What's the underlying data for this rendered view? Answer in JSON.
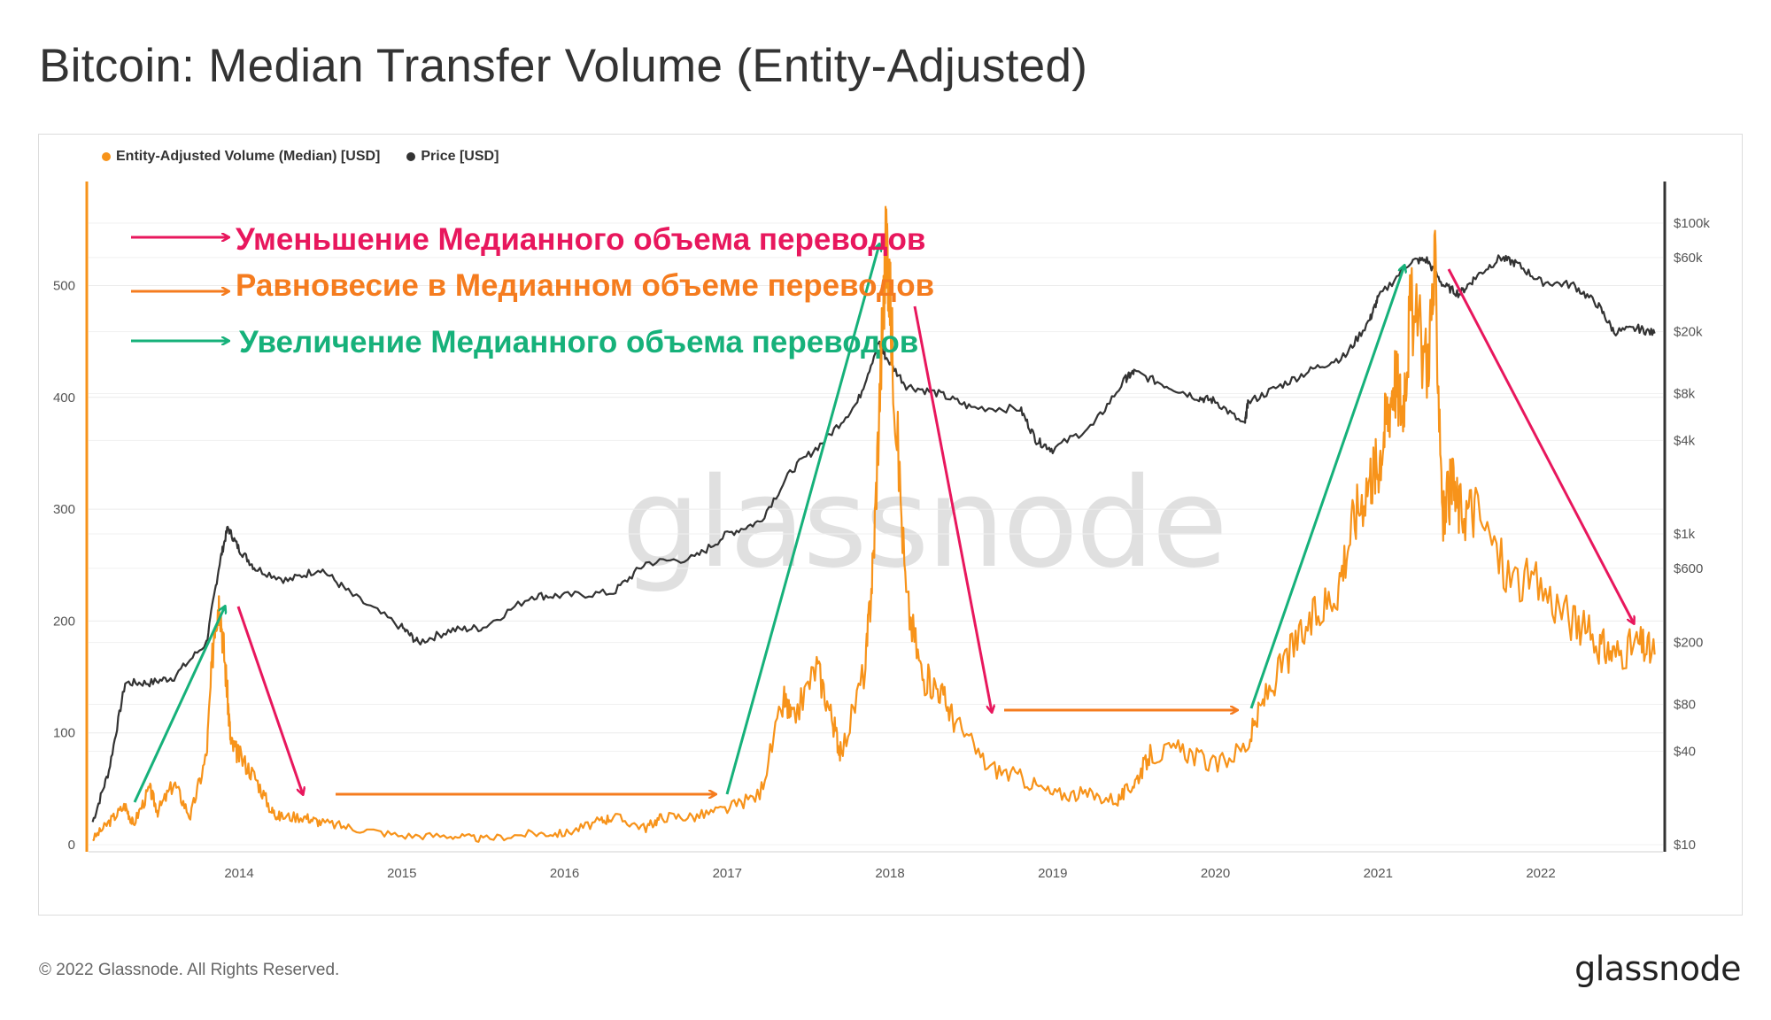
{
  "title": "Bitcoin: Median Transfer Volume (Entity-Adjusted)",
  "legend": [
    {
      "label": "Entity-Adjusted Volume (Median) [USD]",
      "color": "#f7931a"
    },
    {
      "label": "Price [USD]",
      "color": "#333333"
    }
  ],
  "annotations": [
    {
      "text": "Уменьшение Медианного объема переводов",
      "color": "#e8175d"
    },
    {
      "text": "Равновесие в Медианном объеме переводов",
      "color": "#f57c1f"
    },
    {
      "text": "Увеличение Медианного объема переводов",
      "color": "#16b17a"
    }
  ],
  "watermark": "glassnode",
  "footer": {
    "copyright": "© 2022 Glassnode. All Rights Reserved.",
    "logo": "glassnode"
  },
  "colors": {
    "volume": "#f7931a",
    "price": "#333333",
    "decrease": "#e8175d",
    "equilibrium": "#f57c1f",
    "increase": "#16b17a"
  },
  "chart_data": {
    "type": "line",
    "title": "Bitcoin: Median Transfer Volume (Entity-Adjusted)",
    "x_tick_labels": [
      "2014",
      "2015",
      "2016",
      "2017",
      "2018",
      "2019",
      "2020",
      "2021",
      "2022"
    ],
    "x_range": [
      2013.1,
      2022.7
    ],
    "left_axis": {
      "ticks": [
        0,
        100,
        200,
        300,
        400,
        500
      ],
      "range": [
        0,
        560
      ]
    },
    "right_axis": {
      "scale": "log",
      "ticks": [
        10,
        40,
        80,
        200,
        600,
        1000,
        4000,
        8000,
        20000,
        60000,
        100000
      ],
      "tick_labels": [
        "$10",
        "$40",
        "$80",
        "$200",
        "$600",
        "$1k",
        "$4k",
        "$8k",
        "$20k",
        "$60k",
        "$100k"
      ]
    },
    "grid": true,
    "legend_position": "top-left",
    "series": [
      {
        "name": "Entity-Adjusted Volume (Median) [USD]",
        "axis": "left",
        "x": [
          2013.1,
          2013.2,
          2013.3,
          2013.35,
          2013.45,
          2013.5,
          2013.6,
          2013.7,
          2013.8,
          2013.85,
          2013.88,
          2013.92,
          2013.95,
          2014.0,
          2014.1,
          2014.2,
          2014.25,
          2014.4,
          2014.5,
          2014.7,
          2015.0,
          2015.3,
          2015.5,
          2015.8,
          2016.0,
          2016.2,
          2016.3,
          2016.5,
          2016.6,
          2016.8,
          2017.0,
          2017.2,
          2017.35,
          2017.4,
          2017.55,
          2017.65,
          2017.7,
          2017.85,
          2017.9,
          2017.95,
          2017.98,
          2018.02,
          2018.1,
          2018.2,
          2018.3,
          2018.4,
          2018.6,
          2018.8,
          2019.0,
          2019.2,
          2019.4,
          2019.5,
          2019.6,
          2019.8,
          2020.0,
          2020.2,
          2020.3,
          2020.45,
          2020.6,
          2020.75,
          2020.85,
          2020.95,
          2021.0,
          2021.05,
          2021.1,
          2021.15,
          2021.2,
          2021.3,
          2021.35,
          2021.4,
          2021.45,
          2021.5,
          2021.6,
          2021.8,
          2022.0,
          2022.2,
          2022.35,
          2022.45,
          2022.6,
          2022.7
        ],
        "y": [
          5,
          20,
          35,
          18,
          50,
          30,
          55,
          25,
          80,
          200,
          220,
          150,
          90,
          80,
          60,
          30,
          25,
          25,
          20,
          15,
          8,
          8,
          5,
          10,
          10,
          20,
          25,
          15,
          25,
          25,
          32,
          45,
          130,
          110,
          160,
          110,
          80,
          160,
          260,
          450,
          550,
          430,
          220,
          150,
          140,
          110,
          70,
          60,
          45,
          45,
          40,
          55,
          80,
          85,
          70,
          90,
          130,
          170,
          200,
          230,
          290,
          330,
          340,
          380,
          420,
          390,
          480,
          430,
          510,
          290,
          320,
          300,
          300,
          240,
          230,
          200,
          180,
          170,
          180,
          170
        ]
      },
      {
        "name": "Price [USD]",
        "axis": "right",
        "x": [
          2013.1,
          2013.2,
          2013.3,
          2013.45,
          2013.6,
          2013.8,
          2013.88,
          2013.93,
          2014.0,
          2014.1,
          2014.3,
          2014.5,
          2014.7,
          2015.0,
          2015.1,
          2015.3,
          2015.5,
          2015.8,
          2016.0,
          2016.3,
          2016.5,
          2016.8,
          2017.0,
          2017.2,
          2017.4,
          2017.6,
          2017.8,
          2017.93,
          2017.97,
          2018.1,
          2018.3,
          2018.5,
          2018.8,
          2018.9,
          2019.0,
          2019.25,
          2019.45,
          2019.5,
          2019.7,
          2019.9,
          2020.0,
          2020.18,
          2020.2,
          2020.4,
          2020.6,
          2020.8,
          2020.95,
          2021.0,
          2021.2,
          2021.3,
          2021.4,
          2021.5,
          2021.6,
          2021.75,
          2021.85,
          2022.0,
          2022.2,
          2022.35,
          2022.45,
          2022.6,
          2022.7
        ],
        "y": [
          14,
          30,
          110,
          110,
          120,
          200,
          650,
          1100,
          800,
          600,
          500,
          600,
          400,
          250,
          200,
          240,
          250,
          400,
          400,
          420,
          650,
          700,
          1000,
          1200,
          2600,
          4000,
          7000,
          17000,
          14000,
          9000,
          8000,
          6500,
          6400,
          4000,
          3500,
          5000,
          10000,
          11000,
          9000,
          7500,
          7200,
          5000,
          7000,
          9000,
          11500,
          14000,
          24000,
          33000,
          57000,
          58000,
          40000,
          35000,
          45000,
          60000,
          55000,
          42000,
          40000,
          30000,
          20000,
          21000,
          19500
        ]
      }
    ]
  }
}
